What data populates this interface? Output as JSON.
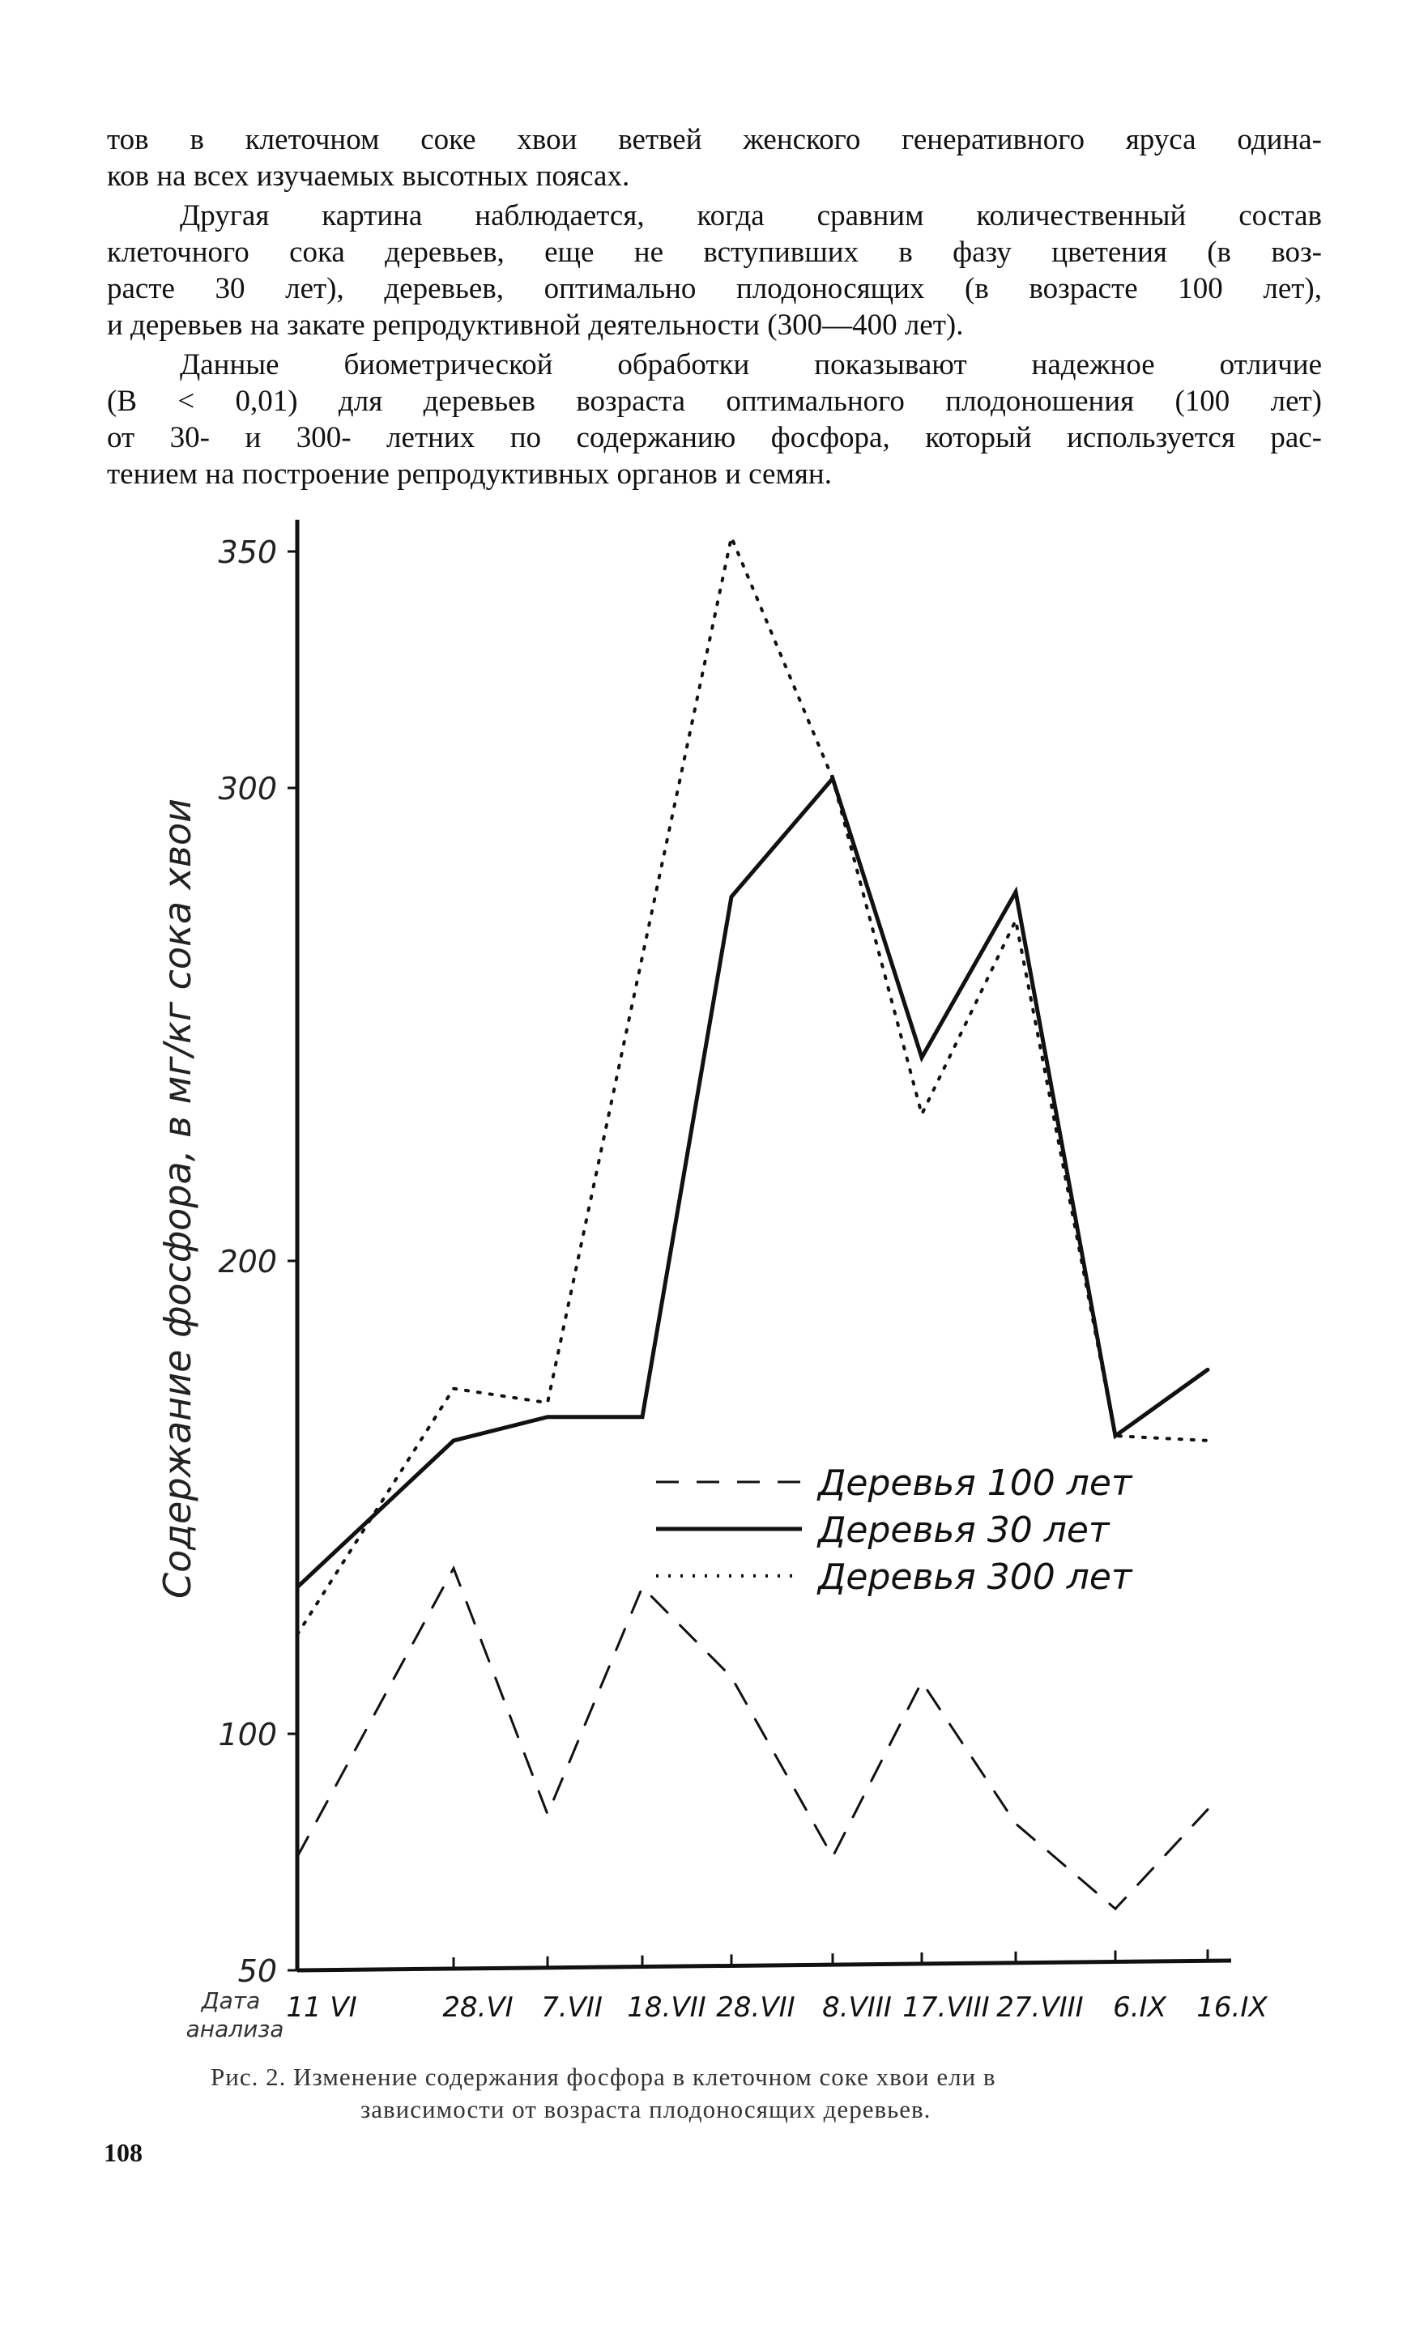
{
  "body_text": {
    "lines": [
      "тов в клеточном соке хвои ветвей женского генеративного яруса одина-",
      "ков на всех изучаемых высотных поясах.",
      "Другая картина наблюдается, когда сравним количественный состав",
      "клеточного сока деревьев, еще не вступивших в фазу цветения (в воз-",
      "расте 30 лет), деревьев, оптимально плодоносящих (в возрасте 100 лет),",
      "и деревьев на закате репродуктивной деятельности (300—400 лет).",
      "Данные биометрической обработки показывают надежное отличие",
      "(B < 0,01) для деревьев возраста оптимального плодоношения (100 лет)",
      "от 30- и 300- летних по содержанию фосфора, который используется рас-",
      "тением на построение репродуктивных органов и семян."
    ]
  },
  "chart_data": {
    "type": "line",
    "title": "",
    "ylabel": "Содержание фосфора, в мг/кг сока хвои",
    "xlabel": "Дата анализа",
    "ylim": [
      50,
      355
    ],
    "yticks": [
      50,
      100,
      200,
      300,
      350
    ],
    "grid": false,
    "legend_placement": "center-right",
    "categories": [
      "11 VI",
      "28.VI",
      "7.VII",
      "18.VII",
      "28.VII",
      "8.VIII",
      "17.VIII",
      "27.VIII",
      "6.IX",
      "16.IX"
    ],
    "series": [
      {
        "name": "Деревья 100 лет",
        "style": "dashed",
        "values": [
          74,
          135,
          83,
          131,
          112,
          74,
          111,
          81,
          63,
          84
        ]
      },
      {
        "name": "Деревья 30 лет",
        "style": "solid",
        "values": [
          131,
          162,
          167,
          167,
          277,
          302,
          243,
          278,
          163,
          177
        ]
      },
      {
        "name": "Деревья 300 лет",
        "style": "dotted",
        "values": [
          121,
          173,
          170,
          null,
          353,
          302,
          231,
          272,
          163,
          162
        ]
      }
    ]
  },
  "caption": {
    "line1": "Рис. 2. Изменение содержания фосфора в клеточном соке хвои ели в",
    "line2": "зависимости от возраста плодоносящих деревьев."
  },
  "page_number": "108"
}
